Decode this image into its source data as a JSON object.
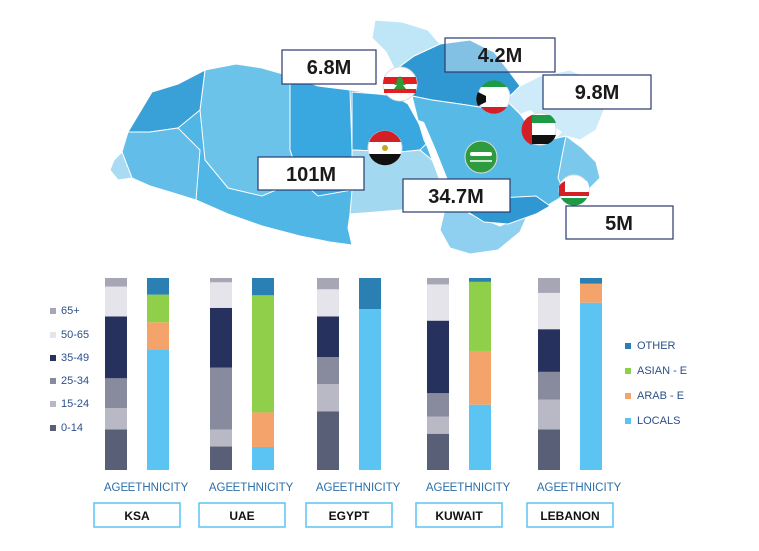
{
  "map": {
    "populations": [
      {
        "country": "LEBANON",
        "value": "6.8M",
        "flag": "lebanon-flag"
      },
      {
        "country": "KUWAIT",
        "value": "4.2M",
        "flag": "kuwait-flag"
      },
      {
        "country": "UAE",
        "value": "9.8M",
        "flag": "uae-flag"
      },
      {
        "country": "EGYPT",
        "value": "101M",
        "flag": "egypt-flag"
      },
      {
        "country": "KSA",
        "value": "34.7M",
        "flag": "saudi-flag"
      },
      {
        "country": "OMAN",
        "value": "5M",
        "flag": "oman-flag"
      }
    ],
    "colors": {
      "land_dark": "#3aa8e0",
      "land_light": "#8fd0f0",
      "desert": "#9fd6f2"
    }
  },
  "chart_data": {
    "type": "bar",
    "stacked": true,
    "normalized": true,
    "categories": [
      "KSA",
      "UAE",
      "EGYPT",
      "KUWAIT",
      "LEBANON"
    ],
    "bar_labels": {
      "age": "AGE",
      "ethnicity": "ETHNICITY"
    },
    "age_legend_title": "",
    "age_series": [
      {
        "name": "0-14",
        "color": "#5a5f78",
        "values": [
          0.19,
          0.11,
          0.26,
          0.17,
          0.19
        ]
      },
      {
        "name": "15-24",
        "color": "#b9b9c5",
        "values": [
          0.1,
          0.08,
          0.12,
          0.08,
          0.14
        ]
      },
      {
        "name": "25-34",
        "color": "#888a9e",
        "values": [
          0.14,
          0.29,
          0.12,
          0.11,
          0.13
        ]
      },
      {
        "name": "35-49",
        "color": "#27315e",
        "values": [
          0.29,
          0.28,
          0.18,
          0.34,
          0.2
        ]
      },
      {
        "name": "50-65",
        "color": "#e4e4ea",
        "values": [
          0.14,
          0.12,
          0.12,
          0.17,
          0.17
        ]
      },
      {
        "name": "65+",
        "color": "#a6a6b4",
        "values": [
          0.04,
          0.02,
          0.05,
          0.03,
          0.07
        ]
      }
    ],
    "ethnicity_series": [
      {
        "name": "LOCALS",
        "color": "#5bc4f2",
        "values": [
          0.65,
          0.12,
          0.88,
          0.34,
          0.88
        ]
      },
      {
        "name": "ARAB - E",
        "color": "#f4a36a",
        "values": [
          0.15,
          0.18,
          0.0,
          0.28,
          0.1
        ]
      },
      {
        "name": "ASIAN - E",
        "color": "#8fcf4a",
        "values": [
          0.15,
          0.61,
          0.0,
          0.36,
          0.0
        ]
      },
      {
        "name": "OTHER",
        "color": "#2a7fb3",
        "values": [
          0.09,
          0.09,
          0.17,
          0.02,
          0.03
        ]
      }
    ],
    "ylim": [
      0,
      1
    ],
    "grid": false,
    "legend_placement": {
      "age": "left",
      "ethnicity": "right"
    }
  }
}
